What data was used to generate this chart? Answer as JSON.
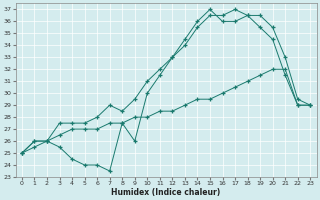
{
  "xlabel": "Humidex (Indice chaleur)",
  "bg_color": "#d4ecee",
  "line_color": "#1a7a6e",
  "xlim": [
    -0.5,
    23.5
  ],
  "ylim": [
    23,
    37.5
  ],
  "yticks": [
    23,
    24,
    25,
    26,
    27,
    28,
    29,
    30,
    31,
    32,
    33,
    34,
    35,
    36,
    37
  ],
  "xticks": [
    0,
    1,
    2,
    3,
    4,
    5,
    6,
    7,
    8,
    9,
    10,
    11,
    12,
    13,
    14,
    15,
    16,
    17,
    18,
    19,
    20,
    21,
    22,
    23
  ],
  "curve1_x": [
    0,
    1,
    2,
    3,
    4,
    5,
    6,
    7,
    8,
    9,
    10,
    11,
    12,
    13,
    14,
    15,
    16,
    17,
    18,
    19,
    20,
    21,
    22,
    23
  ],
  "curve1_y": [
    25.0,
    26.0,
    26.0,
    27.5,
    27.5,
    27.5,
    28.0,
    29.0,
    28.5,
    29.5,
    31.0,
    32.0,
    33.0,
    34.0,
    35.5,
    36.5,
    36.5,
    37.0,
    36.5,
    36.5,
    35.5,
    33.0,
    29.5,
    29.0
  ],
  "curve2_x": [
    0,
    1,
    2,
    3,
    4,
    5,
    6,
    7,
    8,
    9,
    10,
    11,
    12,
    13,
    14,
    15,
    16,
    17,
    18,
    19,
    20,
    21,
    22,
    23
  ],
  "curve2_y": [
    25.0,
    26.0,
    26.0,
    25.5,
    24.5,
    24.0,
    24.0,
    23.5,
    27.5,
    26.0,
    30.0,
    31.5,
    33.0,
    34.5,
    36.0,
    37.0,
    36.0,
    36.0,
    36.5,
    35.5,
    34.5,
    31.5,
    29.0,
    29.0
  ],
  "curve3_x": [
    0,
    1,
    2,
    3,
    4,
    5,
    6,
    7,
    8,
    9,
    10,
    11,
    12,
    13,
    14,
    15,
    16,
    17,
    18,
    19,
    20,
    21,
    22,
    23
  ],
  "curve3_y": [
    25.0,
    25.5,
    26.0,
    26.5,
    27.0,
    27.0,
    27.0,
    27.5,
    27.5,
    28.0,
    28.0,
    28.5,
    28.5,
    29.0,
    29.5,
    29.5,
    30.0,
    30.5,
    31.0,
    31.5,
    32.0,
    32.0,
    29.0,
    29.0
  ]
}
